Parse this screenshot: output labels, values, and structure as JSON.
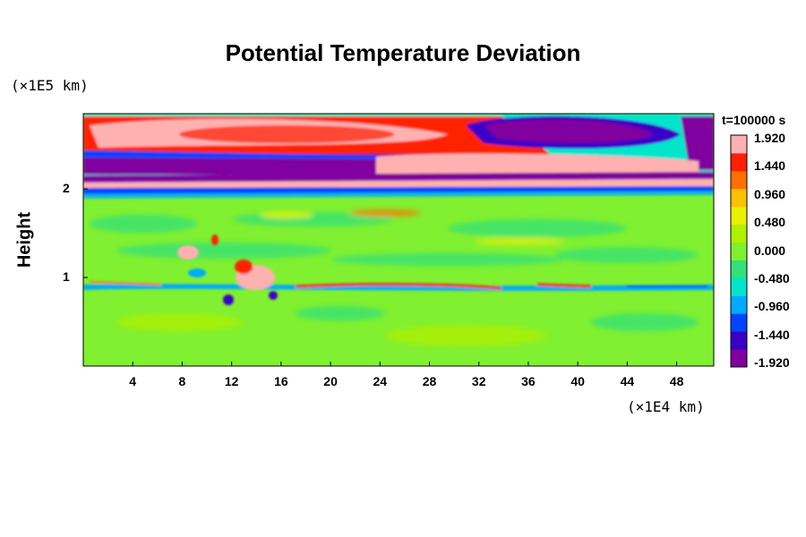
{
  "chart_data": {
    "type": "heatmap",
    "title": "Potential Temperature Deviation",
    "xlabel": "",
    "ylabel": "Height",
    "x_unit": "(×1E4 km)",
    "y_unit": "(×1E5 km)",
    "time_label": "t=100000 s",
    "xlim": [
      0,
      51
    ],
    "ylim": [
      0,
      2.85
    ],
    "x_ticks": [
      4,
      8,
      12,
      16,
      20,
      24,
      28,
      32,
      36,
      40,
      44,
      48
    ],
    "y_ticks": [
      1,
      2
    ],
    "colorbar": {
      "min": -1.92,
      "max": 1.92,
      "tick_values": [
        1.92,
        1.44,
        0.96,
        0.48,
        0.0,
        -0.48,
        -0.96,
        -1.44,
        -1.92
      ],
      "tick_labels": [
        "1.920",
        "1.440",
        "0.960",
        "0.480",
        "0.000",
        "-0.480",
        "-0.960",
        "-1.440",
        "-1.920"
      ],
      "colors": [
        "#8000a0",
        "#3a00c8",
        "#0044ff",
        "#00aaff",
        "#00e5cc",
        "#33e07a",
        "#80f030",
        "#b0f000",
        "#e8f000",
        "#ffc000",
        "#ff7000",
        "#ff2000",
        "#ffb0b0"
      ]
    },
    "grid": false,
    "legend": "colorbar-right"
  }
}
